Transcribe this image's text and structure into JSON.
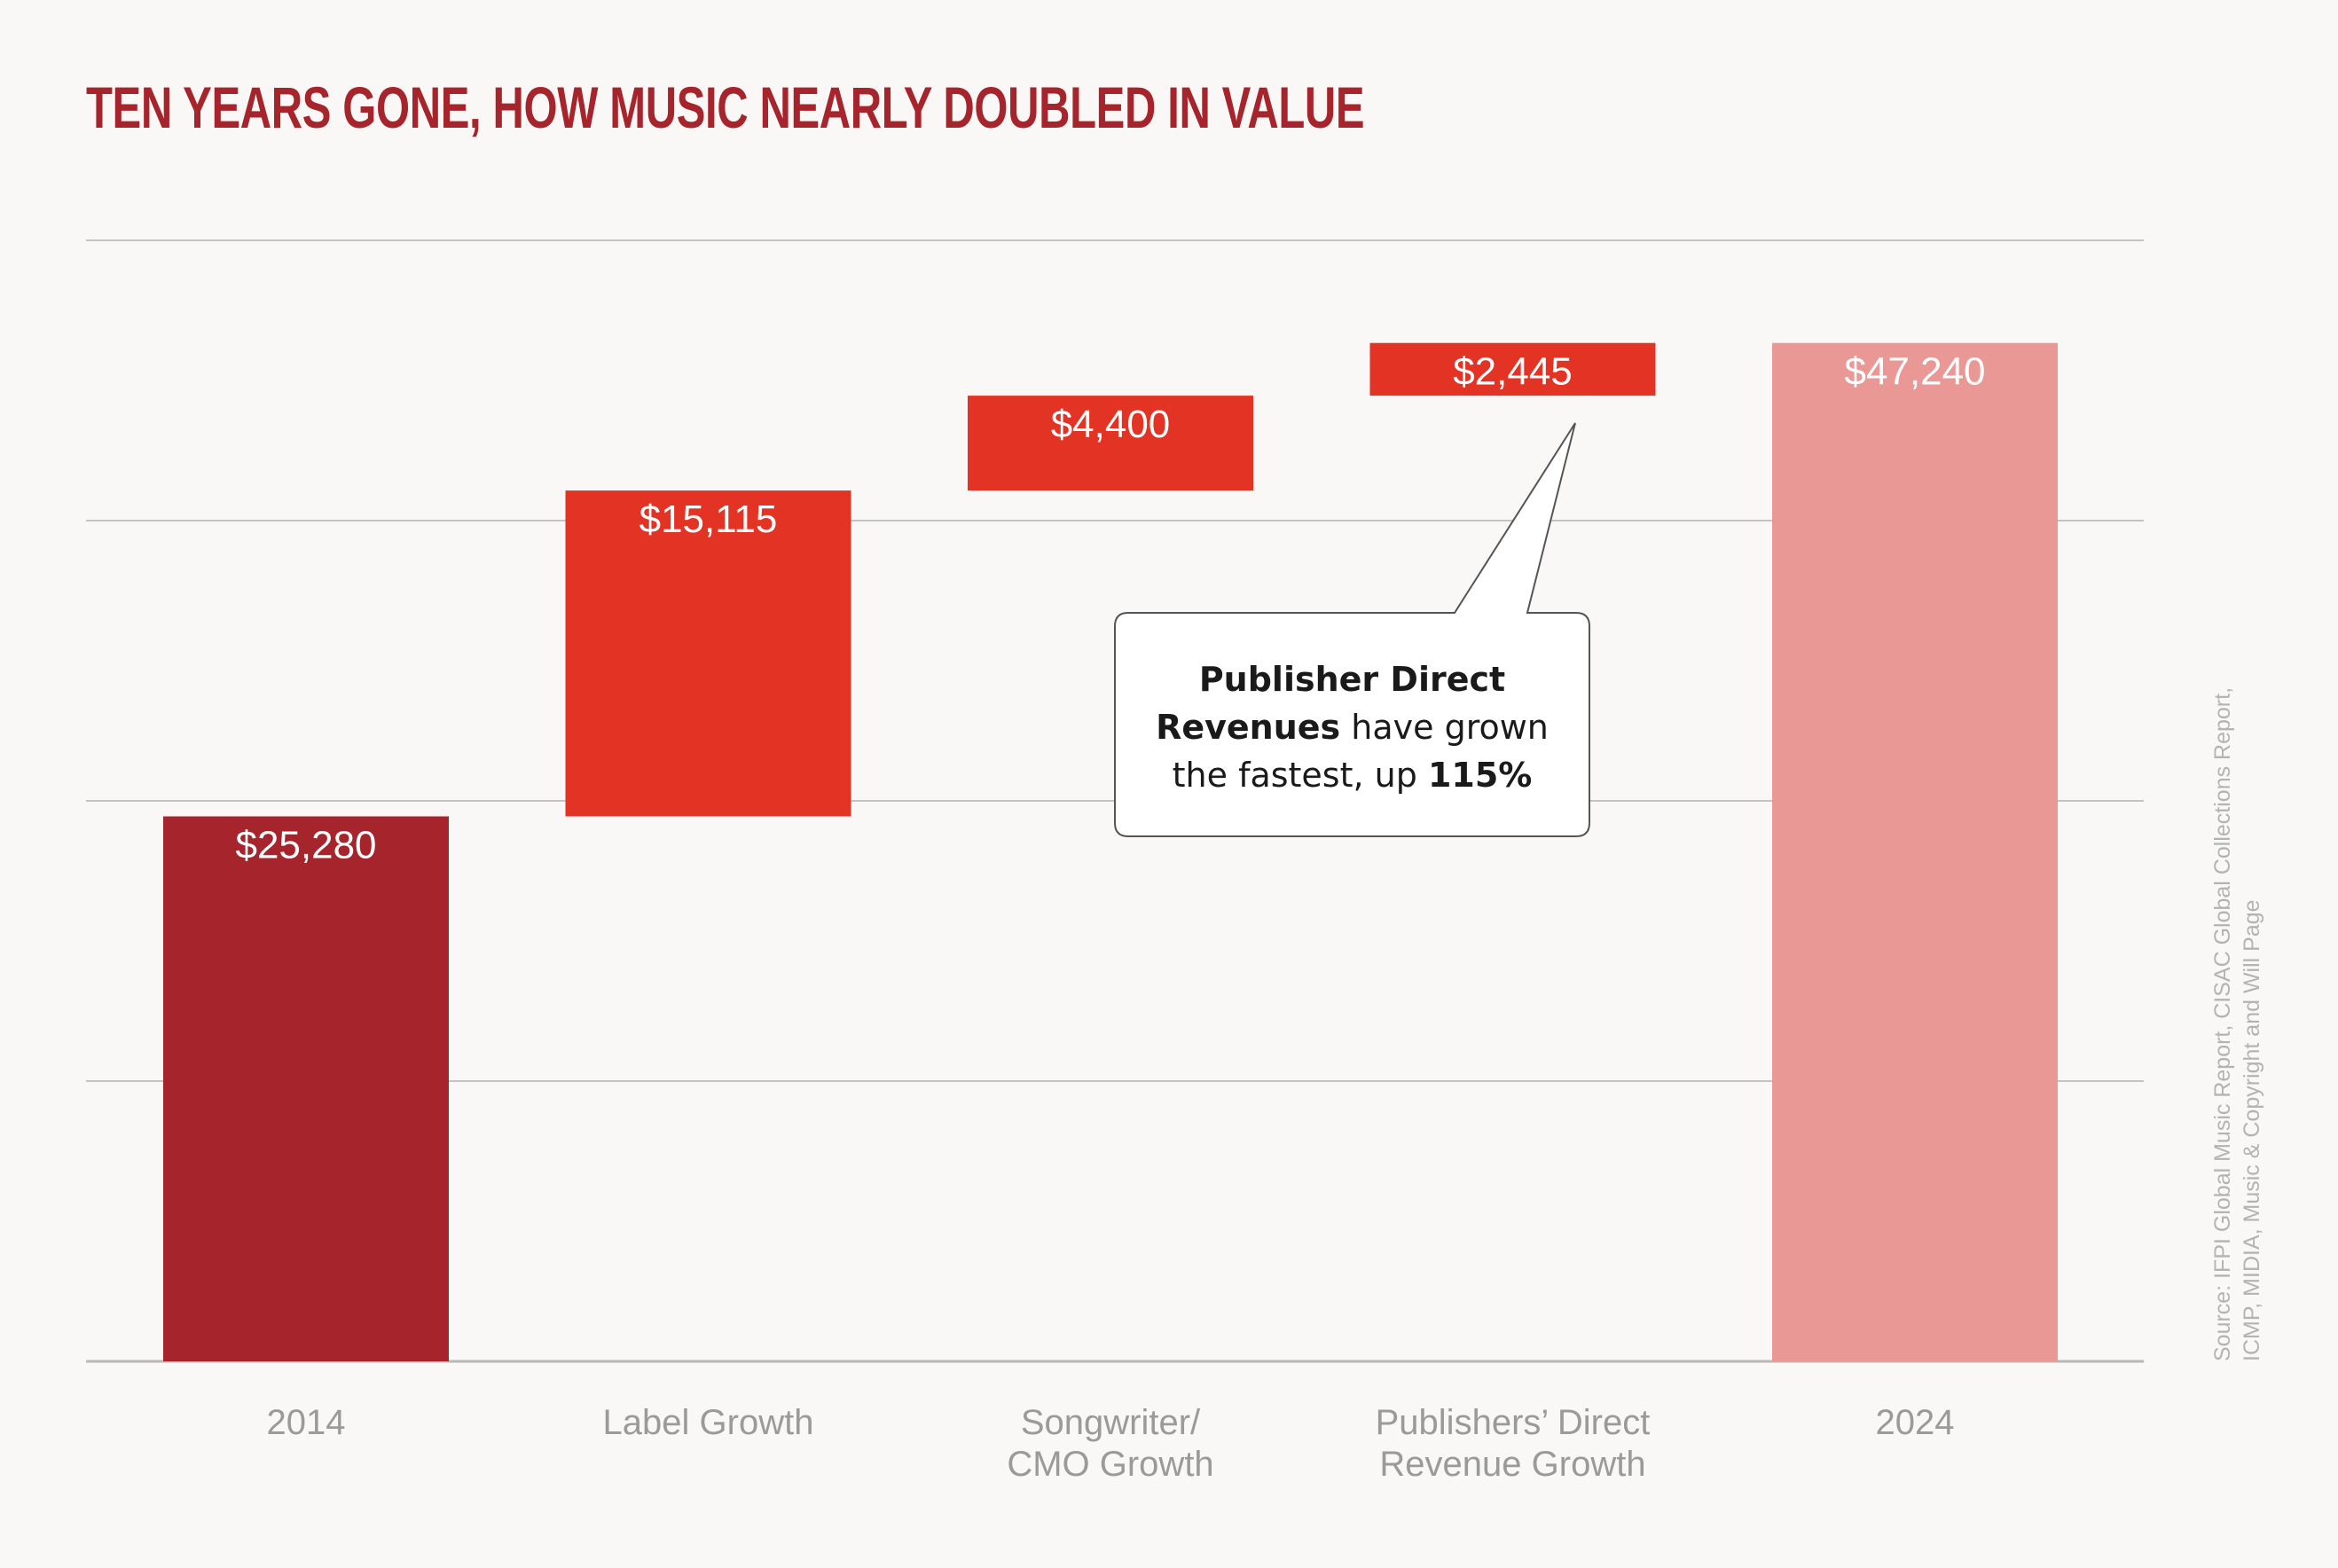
{
  "chart_data": {
    "type": "bar",
    "subtype": "waterfall",
    "title": "TEN YEARS GONE, HOW MUSIC NEARLY DOUBLED IN VALUE",
    "categories": [
      "2014",
      "Label Growth",
      "Songwriter/ CMO Growth",
      "Publishers’ Direct Revenue Growth",
      "2024"
    ],
    "category_lines": [
      [
        "2014"
      ],
      [
        "Label Growth"
      ],
      [
        "Songwriter/",
        "CMO Growth"
      ],
      [
        "Publishers’ Direct",
        "Revenue Growth"
      ],
      [
        "2024"
      ]
    ],
    "values": [
      25280,
      15115,
      4400,
      2445,
      47240
    ],
    "value_labels": [
      "$25,280",
      "$15,115",
      "$4,400",
      "$2,445",
      "$47,240"
    ],
    "kinds": [
      "total",
      "increment",
      "increment",
      "increment",
      "total"
    ],
    "colors": [
      "#a6242b",
      "#e33324",
      "#e33324",
      "#e33324",
      "#ea9896"
    ],
    "xlabel": "",
    "ylabel": "",
    "ylim": [
      0,
      52000
    ],
    "gridlines": [
      0,
      13000,
      26000,
      39000,
      52000
    ],
    "grid": true,
    "y_tick_labels_shown": false,
    "annotation": {
      "target_category": "Publishers’ Direct Revenue Growth",
      "bold_lead": "Publisher Direct Revenues",
      "text": " have grown the fastest, up ",
      "bold_tail": "115%"
    },
    "source": "Source: IFPI Global Music Report, CISAC Global Collections Report, ICMP, MIDIA, Music & Copyright and Will Page"
  },
  "colors": {
    "title": "#a6242b",
    "background": "#f9f8f7",
    "axis_text": "#9a9a9a"
  }
}
